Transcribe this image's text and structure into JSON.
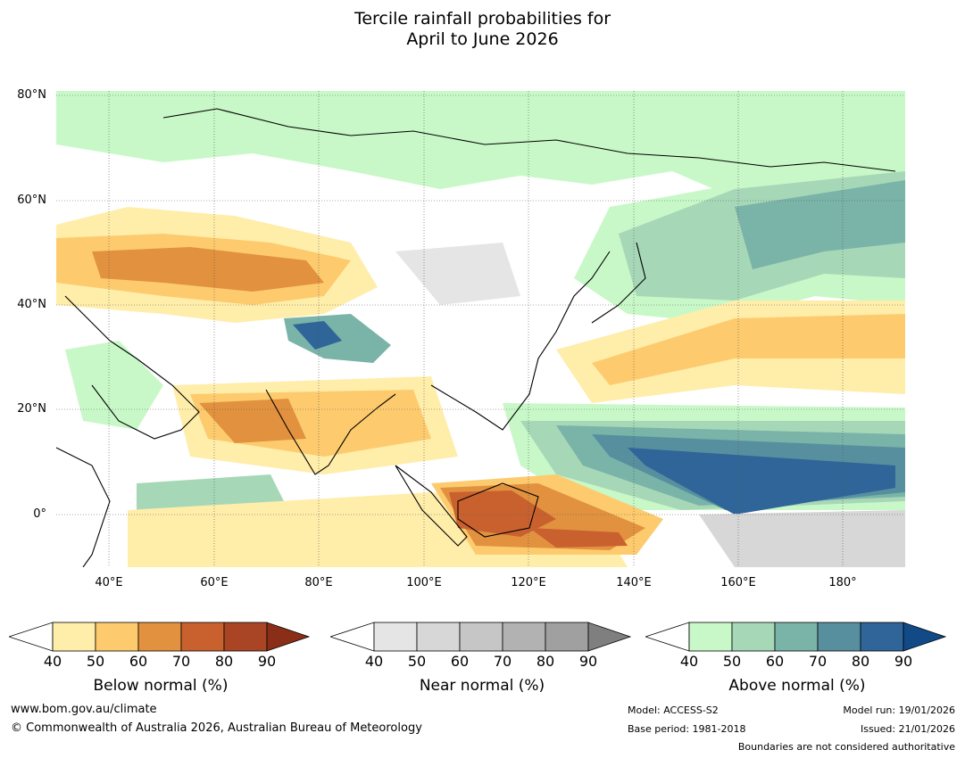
{
  "title": {
    "line1": "Tercile rainfall probabilities for",
    "line2": "April to June 2026"
  },
  "axes": {
    "lat_labels": [
      "80°N",
      "60°N",
      "40°N",
      "20°N",
      "0°"
    ],
    "lon_labels": [
      "40°E",
      "60°E",
      "80°E",
      "100°E",
      "120°E",
      "140°E",
      "160°E",
      "180°"
    ],
    "lon_range": [
      30,
      192
    ],
    "lat_range": [
      -10,
      81
    ]
  },
  "colorbars": {
    "below": {
      "label": "Below normal (%)",
      "ticks": [
        "40",
        "50",
        "60",
        "70",
        "80",
        "90"
      ],
      "colors": [
        "#ffedaa",
        "#fdcb6e",
        "#e2913f",
        "#c9612f",
        "#a94524",
        "#8a2e17"
      ]
    },
    "near": {
      "label": "Near normal (%)",
      "ticks": [
        "40",
        "50",
        "60",
        "70",
        "80",
        "90"
      ],
      "colors": [
        "#e5e5e5",
        "#d7d7d7",
        "#c6c6c6",
        "#b2b2b2",
        "#a0a0a0",
        "#7f7f7f"
      ]
    },
    "above": {
      "label": "Above normal (%)",
      "ticks": [
        "40",
        "50",
        "60",
        "70",
        "80",
        "90"
      ],
      "colors": [
        "#c8f8c8",
        "#a6d8b8",
        "#7ab3a8",
        "#578f9f",
        "#2f6599",
        "#114a86"
      ]
    }
  },
  "footer": {
    "website": "www.bom.gov.au/climate",
    "copyright": "© Commonwealth of Australia 2026, Australian Bureau of Meteorology",
    "model": "Model: ACCESS-S2",
    "base_period": "Base period: 1981-2018",
    "model_run": "Model run: 19/01/2026",
    "issued": "Issued: 21/01/2026",
    "disclaimer": "Boundaries are not considered authoritative"
  }
}
